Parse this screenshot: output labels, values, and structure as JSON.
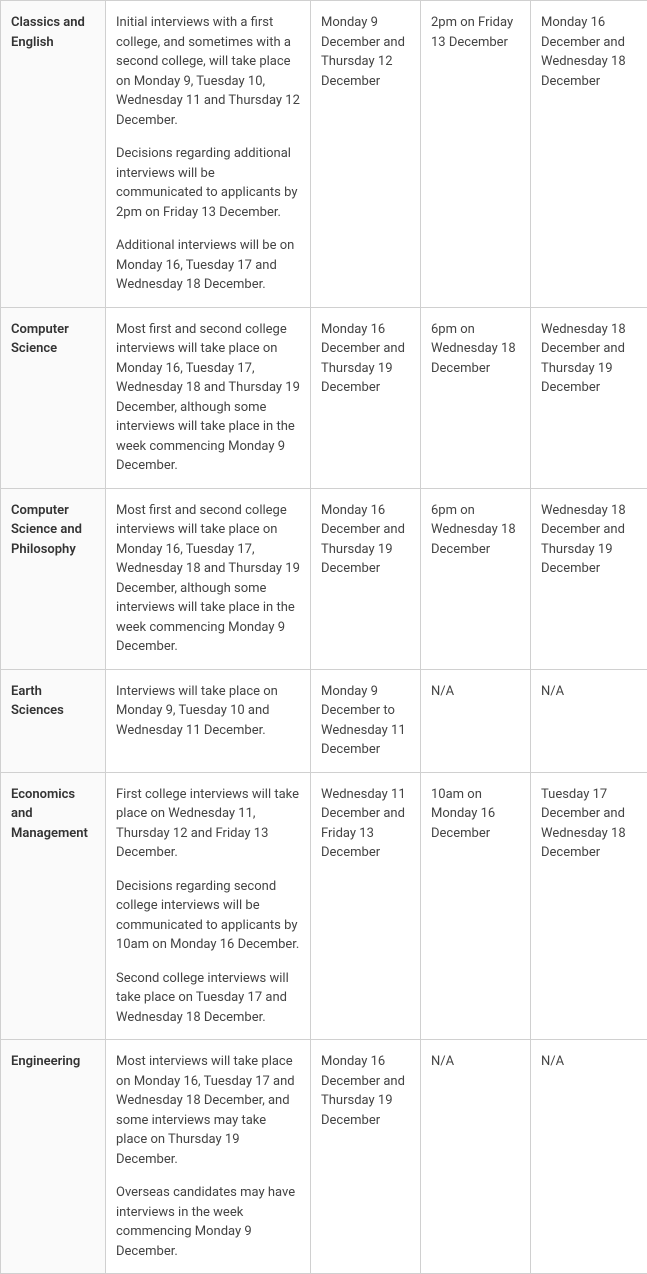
{
  "table": {
    "columns": {
      "subject_width": 105,
      "details_width": 205,
      "col3_width": 110,
      "col4_width": 110,
      "col5_width": 117
    },
    "border_color": "#d0d0d0",
    "background_color": "#ffffff",
    "subject_background": "#fafafa",
    "text_color": "#444444",
    "subject_text_color": "#333333",
    "font_size": 13,
    "rows": [
      {
        "subject": "Classics and English",
        "details_p1": "Initial interviews with a first college, and sometimes with a second college, will take place on Monday 9, Tuesday 10, Wednesday 11 and Thursday 12 December.",
        "details_p2": "Decisions regarding additional interviews will be communicated to applicants by 2pm on Friday 13 December.",
        "details_p3": "Additional interviews will be on Monday 16, Tuesday 17 and Wednesday 18 December.",
        "col3": "Monday 9 December and Thursday 12 December",
        "col4": "2pm on Friday 13 December",
        "col5": "Monday 16 December and Wednesday 18 December"
      },
      {
        "subject": "Computer Science",
        "details_p1": "Most first and second college interviews will take place on Monday 16, Tuesday 17, Wednesday 18 and Thursday 19 December, although some interviews will take place in the week commencing Monday 9 December.",
        "details_p2": "",
        "details_p3": "",
        "col3": "Monday 16 December and Thursday 19 December",
        "col4": "6pm on Wednesday 18 December",
        "col5": "Wednesday 18 December and Thursday 19 December"
      },
      {
        "subject": "Computer Science and Philosophy",
        "details_p1": "Most first and second college interviews will take place on Monday 16, Tuesday 17, Wednesday 18 and Thursday 19 December, although some interviews will take place in the week commencing Monday 9 December.",
        "details_p2": "",
        "details_p3": "",
        "col3": "Monday 16 December and Thursday 19 December",
        "col4": "6pm on Wednesday 18 December",
        "col5": "Wednesday 18 December and Thursday 19 December"
      },
      {
        "subject": "Earth Sciences",
        "details_p1": "Interviews will take place on Monday 9, Tuesday 10 and Wednesday 11 December.",
        "details_p2": "",
        "details_p3": "",
        "col3": "Monday 9 December to Wednesday 11 December",
        "col4": "N/A",
        "col5": "N/A"
      },
      {
        "subject": "Economics and Management",
        "details_p1": "First college interviews will take place on Wednesday 11, Thursday 12 and Friday 13 December.",
        "details_p2": "Decisions regarding second college interviews will be communicated to applicants by 10am on Monday 16 December.",
        "details_p3": "Second college interviews will take place on Tuesday 17 and Wednesday 18 December.",
        "col3": "Wednesday 11 December and Friday 13 December",
        "col4": "10am on Monday 16 December",
        "col5": "Tuesday 17 December and Wednesday 18 December"
      },
      {
        "subject": "Engineering",
        "details_p1": "Most interviews will take place on Monday 16, Tuesday 17 and Wednesday 18 December, and some interviews may take place on Thursday 19 December.",
        "details_p2": "Overseas candidates may have interviews in the week commencing Monday 9 December.",
        "details_p3": "",
        "col3": "Monday 16 December and Thursday 19 December",
        "col4": "N/A",
        "col5": "N/A"
      }
    ]
  }
}
